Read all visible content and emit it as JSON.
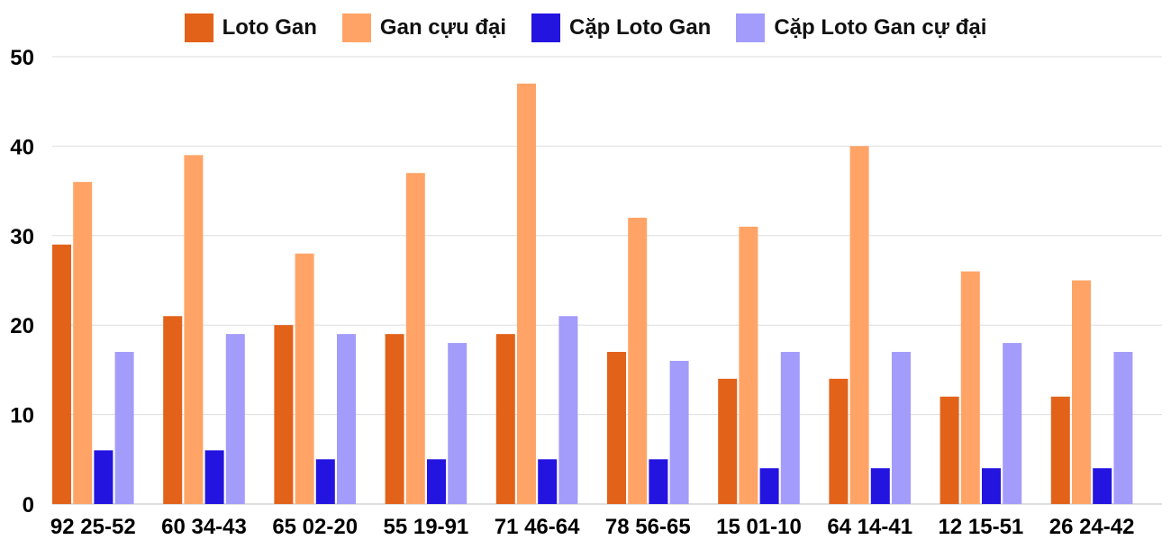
{
  "chart_data": {
    "type": "bar",
    "title": "",
    "xlabel": "",
    "ylabel": "",
    "ylim": [
      0,
      50
    ],
    "yticks": [
      0,
      10,
      20,
      30,
      40,
      50
    ],
    "grid": true,
    "legend_position": "top-center",
    "categories": [
      "92 25-52",
      "60 34-43",
      "65 02-20",
      "55 19-91",
      "71 46-64",
      "78 56-65",
      "15 01-10",
      "64 14-41",
      "12 15-51",
      "26 24-42"
    ],
    "series": [
      {
        "name": "Loto Gan",
        "color": "#e2621a",
        "values": [
          29,
          21,
          20,
          19,
          19,
          17,
          14,
          14,
          12,
          12
        ]
      },
      {
        "name": "Gan cựu đại",
        "color": "#ffa466",
        "values": [
          36,
          39,
          28,
          37,
          47,
          32,
          31,
          40,
          26,
          25
        ]
      },
      {
        "name": "Cặp Loto Gan",
        "color": "#2414e0",
        "values": [
          6,
          6,
          5,
          5,
          5,
          5,
          4,
          4,
          4,
          4
        ]
      },
      {
        "name": "Cặp Loto Gan cự đại",
        "color": "#a39cfa",
        "values": [
          17,
          19,
          19,
          18,
          21,
          16,
          17,
          17,
          18,
          17
        ]
      }
    ]
  }
}
